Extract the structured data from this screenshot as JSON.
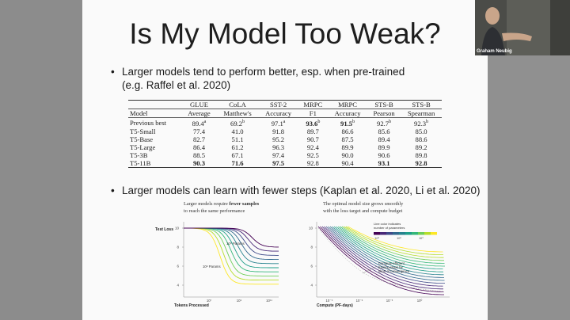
{
  "slide": {
    "title": "Is My Model Too Weak?",
    "bullet1_line1": "Larger models tend to perform better, esp. when pre-trained",
    "bullet1_line2": "(e.g. Raffel et al. 2020)",
    "bullet2": "Larger models can learn with fewer steps (Kaplan et al. 2020, Li et al. 2020)"
  },
  "bullet_glyph": "•",
  "table": {
    "headers": [
      [
        "",
        "Model"
      ],
      [
        "GLUE",
        "Average"
      ],
      [
        "CoLA",
        "Matthew's"
      ],
      [
        "SST-2",
        "Accuracy"
      ],
      [
        "MRPC",
        "F1"
      ],
      [
        "MRPC",
        "Accuracy"
      ],
      [
        "STS-B",
        "Pearson"
      ],
      [
        "STS-B",
        "Spearman"
      ]
    ],
    "rows": [
      [
        "Previous best",
        "89.4",
        "69.2",
        "97.1",
        "93.6",
        "91.5",
        "92.7",
        "92.3"
      ],
      [
        "T5-Small",
        "77.4",
        "41.0",
        "91.8",
        "89.7",
        "86.6",
        "85.6",
        "85.0"
      ],
      [
        "T5-Base",
        "82.7",
        "51.1",
        "95.2",
        "90.7",
        "87.5",
        "89.4",
        "88.6"
      ],
      [
        "T5-Large",
        "86.4",
        "61.2",
        "96.3",
        "92.4",
        "89.9",
        "89.9",
        "89.2"
      ],
      [
        "T5-3B",
        "88.5",
        "67.1",
        "97.4",
        "92.5",
        "90.0",
        "90.6",
        "89.8"
      ],
      [
        "T5-11B",
        "90.3",
        "71.6",
        "97.5",
        "92.8",
        "90.4",
        "93.1",
        "92.8"
      ]
    ],
    "superscripts": [
      [
        "",
        "a",
        "b",
        "a",
        "b",
        "b",
        "b",
        "b"
      ]
    ]
  },
  "figure": {
    "left_caption_1": "Larger models require",
    "left_caption_bold": "fewer samples",
    "left_caption_2": "to reach the same performance",
    "right_caption_1": "The optimal model size grows smoothly",
    "right_caption_2": "with the loss target and compute budget",
    "left_ylabel": "Test Loss",
    "left_xlabel": "Tokens Processed",
    "right_xlabel": "Compute (PF-days)",
    "left_yticks": [
      "10",
      "8",
      "6",
      "4"
    ],
    "left_xticks": [
      "10⁷",
      "10⁹",
      "10¹¹"
    ],
    "right_xticks": [
      "10⁻⁹",
      "10⁻⁶",
      "10⁻³",
      "10⁰"
    ],
    "annot_big": "10⁹ Params",
    "annot_small": "10⁸ Params",
    "legend_line1": "Line color indicates",
    "legend_line2": "number of parameters",
    "legend_ticks": [
      "10³",
      "10⁶",
      "10⁹"
    ],
    "compute_note_1": "Compute-efficient",
    "compute_note_2": "training stops far",
    "compute_note_3": "short of convergence"
  },
  "webcam": {
    "name": "Graham Neubig"
  },
  "colors": {
    "viridis": [
      "#440154",
      "#482878",
      "#3e4a89",
      "#31688e",
      "#26828e",
      "#1f9e89",
      "#35b779",
      "#6ece58",
      "#b5de2b",
      "#fde725"
    ]
  }
}
